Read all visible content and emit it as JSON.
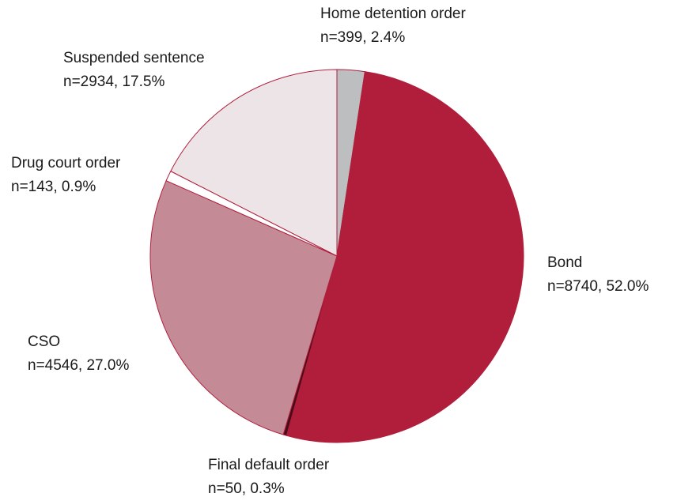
{
  "chart_data": {
    "type": "pie",
    "categories": [
      "Home detention order",
      "Bond",
      "Final default order",
      "CSO",
      "Drug court order",
      "Suspended sentence"
    ],
    "values": [
      2.4,
      52.0,
      0.3,
      27.0,
      0.9,
      17.5
    ],
    "value_labels": [
      "n=399, 2.4%",
      "n=8740, 52.0%",
      "n=50, 0.3%",
      "n=4546, 27.0%",
      "n=143, 0.9%",
      "n=2934, 17.5%"
    ],
    "colors": [
      "#bcbec0",
      "#b01e3c",
      "#4a0c18",
      "#c48b97",
      "#ffffff",
      "#ece4e7"
    ]
  }
}
